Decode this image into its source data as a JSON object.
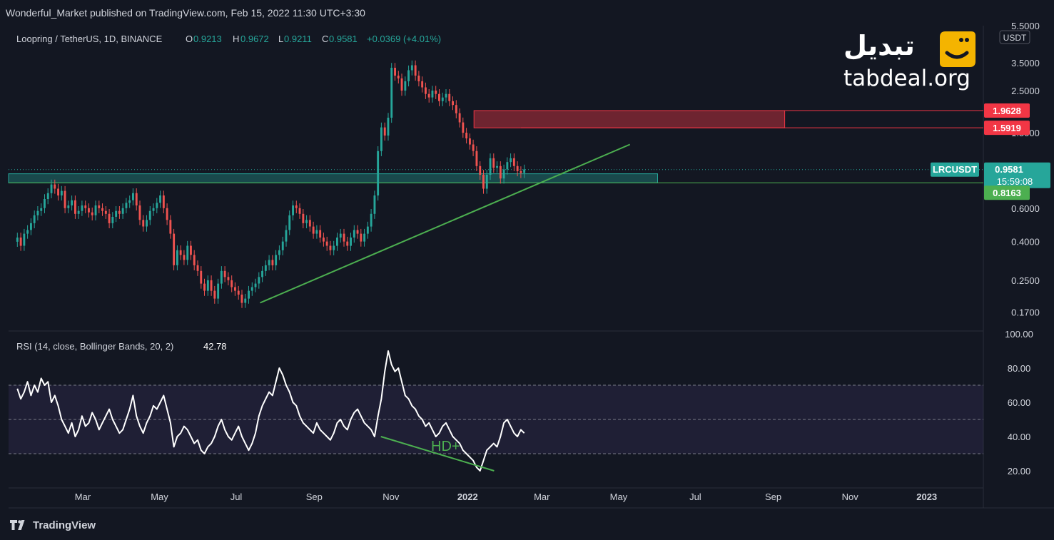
{
  "publish_line": "Wonderful_Market published on TradingView.com, Feb 15, 2022 11:30 UTC+3:30",
  "footer_brand": "TradingView",
  "logo": {
    "fa": "تبدیل",
    "en": "tabdeal.org"
  },
  "colors": {
    "bg": "#131722",
    "up": "#26a69a",
    "down": "#ef5350",
    "trend": "#4caf50",
    "zone_green": "#26a69a",
    "zone_red": "#8e2a35",
    "rsi": "#ffffff"
  },
  "chart_data": [
    {
      "type": "candlestick",
      "header": {
        "symbol": "Loopring / TetherUS, 1D, BINANCE",
        "o_label": "O",
        "o": "0.9213",
        "h_label": "H",
        "h": "0.9672",
        "l_label": "L",
        "l": "0.9211",
        "c_label": "C",
        "c": "0.9581",
        "chg": "+0.0369 (+4.01%)"
      },
      "y_scale": "log",
      "y_range": [
        0.135,
        5.5
      ],
      "y_axis_labels": [
        "5.5000",
        "3.5000",
        "2.5000",
        "1.5000",
        "0.6000",
        "0.4000",
        "0.2500",
        "0.1700"
      ],
      "y_axis_values": [
        5.5,
        3.5,
        2.5,
        1.5,
        0.6,
        0.4,
        0.25,
        0.17
      ],
      "unit": "USDT",
      "x_axis_labels": [
        "Mar",
        "May",
        "Jul",
        "Sep",
        "Nov",
        "2022",
        "Mar",
        "May",
        "Jul",
        "Sep",
        "Nov",
        "2023"
      ],
      "price_labels": [
        {
          "value": "1.9628",
          "color": "#f23645"
        },
        {
          "value": "1.5919",
          "color": "#f23645"
        },
        {
          "ticker": "LRCUSDT",
          "value": "0.9581",
          "countdown": "15:59:08",
          "color": "#26a69a"
        },
        {
          "value": "0.8163",
          "color": "#4caf50"
        }
      ],
      "zones": [
        {
          "name": "resistance-zone",
          "from_date": "2022-01-06",
          "to_date": "2022-09-10",
          "low": 1.5919,
          "high": 1.9628
        },
        {
          "name": "support-zone",
          "from_date": "2021-01-01",
          "to_date": "2022-06-01",
          "low": 0.8163,
          "high": 0.85
        }
      ],
      "trendline": {
        "from": [
          "2021-07-20",
          0.19
        ],
        "to": [
          "2022-05-10",
          1.3
        ]
      },
      "closes": [
        0.42,
        0.38,
        0.44,
        0.46,
        0.5,
        0.55,
        0.58,
        0.6,
        0.67,
        0.72,
        0.8,
        0.76,
        0.7,
        0.74,
        0.6,
        0.62,
        0.66,
        0.56,
        0.58,
        0.62,
        0.6,
        0.57,
        0.55,
        0.62,
        0.6,
        0.58,
        0.56,
        0.5,
        0.54,
        0.58,
        0.56,
        0.6,
        0.64,
        0.66,
        0.72,
        0.62,
        0.52,
        0.48,
        0.52,
        0.58,
        0.6,
        0.64,
        0.7,
        0.6,
        0.52,
        0.44,
        0.3,
        0.36,
        0.34,
        0.32,
        0.38,
        0.34,
        0.3,
        0.28,
        0.24,
        0.22,
        0.25,
        0.22,
        0.2,
        0.24,
        0.28,
        0.26,
        0.25,
        0.23,
        0.22,
        0.21,
        0.19,
        0.2,
        0.22,
        0.23,
        0.24,
        0.26,
        0.28,
        0.3,
        0.32,
        0.3,
        0.34,
        0.36,
        0.4,
        0.46,
        0.55,
        0.62,
        0.6,
        0.56,
        0.5,
        0.52,
        0.48,
        0.44,
        0.46,
        0.42,
        0.4,
        0.38,
        0.36,
        0.38,
        0.42,
        0.44,
        0.4,
        0.38,
        0.42,
        0.46,
        0.44,
        0.4,
        0.44,
        0.48,
        0.56,
        0.7,
        1.2,
        1.6,
        1.45,
        1.8,
        3.3,
        3.0,
        2.9,
        2.5,
        2.8,
        3.2,
        3.4,
        3.0,
        2.8,
        2.6,
        2.4,
        2.3,
        2.5,
        2.4,
        2.2,
        2.3,
        2.4,
        2.2,
        2.1,
        1.9,
        1.7,
        1.5,
        1.4,
        1.3,
        1.2,
        1.0,
        0.9,
        0.76,
        0.9,
        1.1,
        0.98,
        1.0,
        0.86,
        0.96,
        1.05,
        1.1,
        1.0,
        0.94,
        0.92,
        0.96
      ]
    },
    {
      "type": "line",
      "title": "RSI (14, close, Bollinger Bands, 20, 2)",
      "current": "42.78",
      "y_range": [
        10,
        100
      ],
      "y_axis_labels": [
        "100.00",
        "80.00",
        "60.00",
        "40.00",
        "20.00"
      ],
      "y_axis_values": [
        100,
        80,
        60,
        40,
        20
      ],
      "band": {
        "upper": 70,
        "middle": 50,
        "lower": 30
      },
      "annotation": "HD+",
      "divergence_line": {
        "from": [
          "2021-10-24",
          40
        ],
        "to": [
          "2022-01-22",
          20
        ]
      },
      "values": [
        68,
        62,
        66,
        72,
        64,
        70,
        66,
        74,
        70,
        72,
        60,
        64,
        58,
        50,
        46,
        42,
        48,
        40,
        44,
        52,
        46,
        48,
        54,
        50,
        44,
        48,
        52,
        56,
        50,
        46,
        42,
        44,
        50,
        56,
        64,
        52,
        46,
        42,
        48,
        52,
        58,
        56,
        60,
        64,
        56,
        48,
        34,
        40,
        42,
        46,
        44,
        40,
        36,
        38,
        32,
        30,
        34,
        36,
        40,
        46,
        50,
        44,
        40,
        38,
        42,
        46,
        40,
        36,
        32,
        36,
        42,
        52,
        58,
        62,
        66,
        64,
        72,
        80,
        76,
        70,
        66,
        60,
        58,
        52,
        48,
        46,
        44,
        42,
        48,
        44,
        42,
        40,
        38,
        42,
        48,
        50,
        46,
        44,
        50,
        54,
        56,
        52,
        48,
        46,
        44,
        40,
        52,
        62,
        78,
        90,
        82,
        78,
        80,
        72,
        64,
        62,
        58,
        56,
        52,
        50,
        46,
        48,
        44,
        40,
        42,
        46,
        48,
        44,
        40,
        38,
        36,
        32,
        30,
        28,
        26,
        22,
        20,
        26,
        32,
        34,
        36,
        34,
        40,
        48,
        50,
        46,
        42,
        40,
        44,
        42
      ]
    }
  ]
}
